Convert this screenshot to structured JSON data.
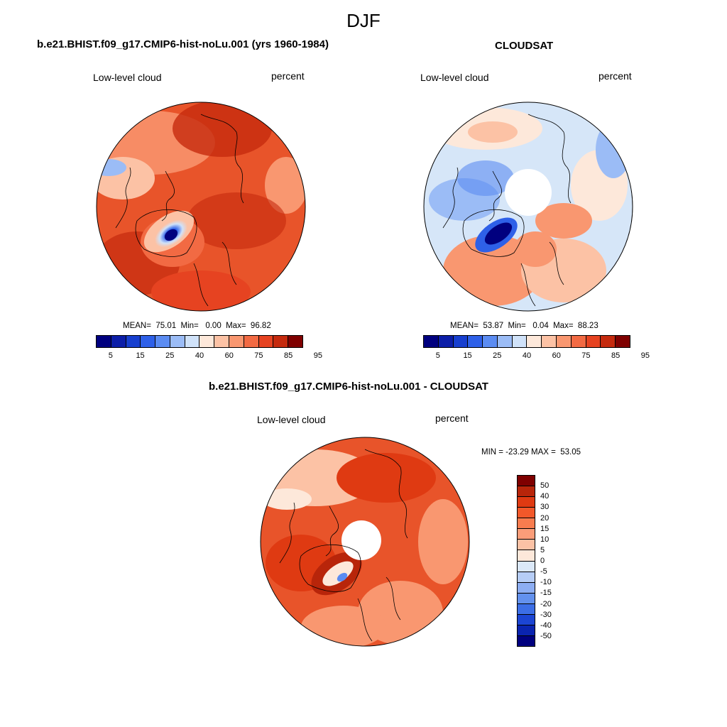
{
  "figure": {
    "season": "DJF",
    "case_title": "b.e21.BHIST.f09_g17.CMIP6-hist-noLu.001 (yrs 1960-1984)",
    "obs_title": "CLOUDSAT",
    "diff_title": "b.e21.BHIST.f09_g17.CMIP6-hist-noLu.001 - CLOUDSAT"
  },
  "panels": {
    "model": {
      "variable": "Low-level cloud",
      "units": "percent",
      "stats": "MEAN=  75.01  Min=   0.00  Max=  96.82"
    },
    "obs": {
      "variable": "Low-level cloud",
      "units": "percent",
      "stats": "MEAN=  53.87  Min=   0.04  Max=  88.23"
    },
    "diff": {
      "variable": "Low-level cloud",
      "units": "percent",
      "stats": "MIN = -23.29 MAX =  53.05"
    }
  },
  "colorbar_main": {
    "ticks": [
      "5",
      "15",
      "25",
      "40",
      "60",
      "75",
      "85",
      "95"
    ],
    "colors": [
      "#00007f",
      "#0c1ea8",
      "#173fcf",
      "#2e60e8",
      "#5b8cf2",
      "#9bbcf6",
      "#d0e2f9",
      "#fde8da",
      "#fcc2a5",
      "#f99770",
      "#f26a43",
      "#e64321",
      "#c52a0e",
      "#7f0000"
    ]
  },
  "colorbar_diff": {
    "ticks": [
      "50",
      "40",
      "30",
      "20",
      "15",
      "10",
      "5",
      "0",
      "-5",
      "-10",
      "-15",
      "-20",
      "-30",
      "-40",
      "-50"
    ],
    "colors": [
      "#7f0000",
      "#b8250a",
      "#df3a12",
      "#f2582a",
      "#f87c4f",
      "#fb9d79",
      "#fcc2a5",
      "#fde8da",
      "#dbe8f8",
      "#b6cdf6",
      "#8daef3",
      "#6391ee",
      "#3c6ee6",
      "#1c45d3",
      "#0a24b0",
      "#00007f"
    ]
  },
  "map_fields": {
    "model": {
      "background": "#e8542a",
      "low_region": "#0a1aa8"
    },
    "obs": {
      "background": "#d6e6f8",
      "low_region": "#0a1aa8"
    },
    "diff": {
      "background": "#e8542a",
      "low_region": "#b6cdf6"
    }
  },
  "chart_data": {
    "type": "heatmap",
    "title": "DJF",
    "panels": [
      {
        "name": "b.e21.BHIST.f09_g17.CMIP6-hist-noLu.001 (yrs 1960-1984)",
        "field": "Low-level cloud",
        "units": "percent",
        "mean": 75.01,
        "min": 0.0,
        "max": 96.82,
        "levels": [
          5,
          15,
          25,
          40,
          60,
          75,
          85,
          95
        ]
      },
      {
        "name": "CLOUDSAT",
        "field": "Low-level cloud",
        "units": "percent",
        "mean": 53.87,
        "min": 0.04,
        "max": 88.23,
        "levels": [
          5,
          15,
          25,
          40,
          60,
          75,
          85,
          95
        ]
      },
      {
        "name": "b.e21.BHIST.f09_g17.CMIP6-hist-noLu.001 - CLOUDSAT",
        "field": "Low-level cloud",
        "units": "percent",
        "min": -23.29,
        "max": 53.05,
        "levels": [
          -50,
          -40,
          -30,
          -20,
          -15,
          -10,
          -5,
          0,
          5,
          10,
          15,
          20,
          30,
          40,
          50
        ]
      }
    ]
  }
}
